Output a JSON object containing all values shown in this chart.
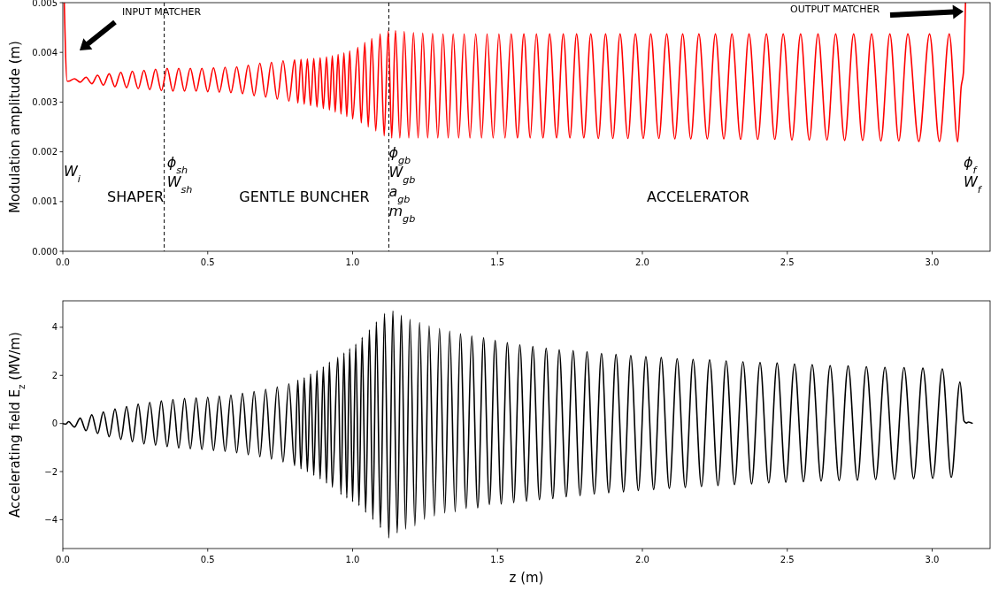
{
  "chart_data": [
    {
      "type": "line",
      "ylabel": "Modulation amplitude (m)",
      "xlim": [
        0,
        3.2
      ],
      "ylim": [
        0,
        0.005
      ],
      "xticks": [
        {
          "value": 0,
          "label": "0.0"
        },
        {
          "value": 0.5,
          "label": "0.5"
        },
        {
          "value": 1,
          "label": "1.0"
        },
        {
          "value": 1.5,
          "label": "1.5"
        },
        {
          "value": 2,
          "label": "2.0"
        },
        {
          "value": 2.5,
          "label": "2.5"
        },
        {
          "value": 3,
          "label": "3.0"
        }
      ],
      "yticks": [
        {
          "value": 0,
          "label": "0.000"
        },
        {
          "value": 0.001,
          "label": "0.001"
        },
        {
          "value": 0.002,
          "label": "0.002"
        },
        {
          "value": 0.003,
          "label": "0.003"
        },
        {
          "value": 0.004,
          "label": "0.004"
        },
        {
          "value": 0.005,
          "label": "0.005"
        }
      ],
      "x": [
        0.005,
        0.015,
        0.02,
        0.04,
        0.06,
        0.08,
        0.1,
        0.12,
        0.14,
        0.16,
        0.18,
        0.2,
        0.22,
        0.24,
        0.26,
        0.28,
        0.3,
        0.32,
        0.34,
        0.36,
        0.38,
        0.4,
        0.42,
        0.44,
        0.46,
        0.48,
        0.5,
        0.52,
        0.54,
        0.56,
        0.58,
        0.6,
        0.62,
        0.64,
        0.66,
        0.68,
        0.7,
        0.72,
        0.74,
        0.76,
        0.78,
        0.8,
        0.811,
        0.822,
        0.833,
        0.844,
        0.855,
        0.866,
        0.877,
        0.888,
        0.899,
        0.91,
        0.92,
        0.93,
        0.94,
        0.95,
        0.96,
        0.97,
        0.98,
        0.99,
        1.0,
        1.018,
        1.03,
        1.042,
        1.054,
        1.066,
        1.08,
        1.095,
        1.109,
        1.123,
        1.135,
        1.148,
        1.163,
        1.178,
        1.194,
        1.21,
        1.226,
        1.242,
        1.259,
        1.276,
        1.294,
        1.312,
        1.33,
        1.347,
        1.366,
        1.385,
        1.405,
        1.425,
        1.445,
        1.464,
        1.485,
        1.505,
        1.526,
        1.547,
        1.569,
        1.591,
        1.613,
        1.634,
        1.657,
        1.68,
        1.704,
        1.727,
        1.75,
        1.773,
        1.798,
        1.822,
        1.848,
        1.873,
        1.898,
        1.923,
        1.95,
        1.976,
        2.003,
        2.029,
        2.057,
        2.084,
        2.112,
        2.139,
        2.167,
        2.195,
        2.224,
        2.252,
        2.281,
        2.309,
        2.339,
        2.368,
        2.398,
        2.428,
        2.457,
        2.486,
        2.516,
        2.546,
        2.576,
        2.606,
        2.637,
        2.667,
        2.698,
        2.729,
        2.76,
        2.791,
        2.823,
        2.854,
        2.885,
        2.916,
        2.954,
        2.991,
        3.025,
        3.059,
        3.088,
        3.1,
        3.108,
        3.115
      ],
      "series": [
        {
          "color": "#ff0000",
          "values": [
            0.005,
            0.00342,
            0.00342,
            0.00347,
            0.0034,
            0.0035,
            0.00337,
            0.00354,
            0.00334,
            0.00357,
            0.00331,
            0.0036,
            0.00329,
            0.00362,
            0.00327,
            0.00364,
            0.00325,
            0.00366,
            0.00323,
            0.00368,
            0.00322,
            0.00368,
            0.00322,
            0.00368,
            0.00322,
            0.00368,
            0.00321,
            0.00369,
            0.0032,
            0.0037,
            0.00319,
            0.00371,
            0.00317,
            0.00374,
            0.00313,
            0.00378,
            0.0031,
            0.0038,
            0.00306,
            0.00383,
            0.00302,
            0.00385,
            0.00298,
            0.00386,
            0.00296,
            0.00387,
            0.00293,
            0.00388,
            0.0029,
            0.00389,
            0.00287,
            0.00391,
            0.00284,
            0.00393,
            0.0028,
            0.00396,
            0.00276,
            0.00399,
            0.00271,
            0.00403,
            0.00266,
            0.0041,
            0.00258,
            0.0042,
            0.0025,
            0.00428,
            0.00242,
            0.00437,
            0.00232,
            0.00443,
            0.00228,
            0.00444,
            0.00228,
            0.00442,
            0.00228,
            0.0044,
            0.00228,
            0.00439,
            0.00228,
            0.00438,
            0.00228,
            0.00437,
            0.00228,
            0.00437,
            0.00228,
            0.00437,
            0.00228,
            0.00437,
            0.00228,
            0.00437,
            0.00228,
            0.00437,
            0.00228,
            0.00437,
            0.00228,
            0.00437,
            0.00228,
            0.00437,
            0.00228,
            0.00437,
            0.00228,
            0.00437,
            0.00228,
            0.00437,
            0.00228,
            0.00437,
            0.00227,
            0.00437,
            0.00227,
            0.00437,
            0.00227,
            0.00437,
            0.00227,
            0.00437,
            0.00227,
            0.00437,
            0.00226,
            0.00437,
            0.00226,
            0.00437,
            0.00226,
            0.00437,
            0.00226,
            0.00437,
            0.00225,
            0.00437,
            0.00225,
            0.00437,
            0.00225,
            0.00437,
            0.00224,
            0.00437,
            0.00224,
            0.00437,
            0.00224,
            0.00437,
            0.00223,
            0.00437,
            0.00223,
            0.00437,
            0.00222,
            0.00437,
            0.00222,
            0.00437,
            0.00221,
            0.00437,
            0.00221,
            0.00437,
            0.0022,
            0.0033,
            0.0036,
            0.005
          ]
        }
      ],
      "ref_lines": [
        {
          "axis": "x",
          "value": 0.35,
          "color": "#000000",
          "line_style": "dashed"
        },
        {
          "axis": "x",
          "value": 1.125,
          "color": "#000000",
          "line_style": "dashed"
        }
      ],
      "annotations": [
        "INPUT MATCHER",
        "OUTPUT MATCHER",
        "SHAPER",
        "GENTLE BUNCHER",
        "ACCELERATOR",
        "W$_{i}$",
        {
          "text": "ϕ$_{sh}$\nW$_{sh}$",
          "x": 0.35,
          "y": 0.0018
        },
        {
          "text": "ϕ$_{gb}$\nW$_{gb}$\na$_{gb}$\nm$_{gb}$",
          "x": 1.125,
          "y": 0.002
        },
        "ϕ$_{f}$\nW$_{f}$"
      ]
    },
    {
      "type": "line",
      "xlabel": "z (m)",
      "ylabel": "Accelerating field E$_{z}$ (MV/m)",
      "xlim": [
        0,
        3.2
      ],
      "ylim": [
        -5.2,
        5.1
      ],
      "xticks": [
        {
          "value": 0,
          "label": "0.0"
        },
        {
          "value": 0.5,
          "label": "0.5"
        },
        {
          "value": 1,
          "label": "1.0"
        },
        {
          "value": 1.5,
          "label": "1.5"
        },
        {
          "value": 2,
          "label": "2.0"
        },
        {
          "value": 2.5,
          "label": "2.5"
        },
        {
          "value": 3,
          "label": "3.0"
        }
      ],
      "yticks": [
        {
          "value": -4,
          "label": "−4"
        },
        {
          "value": -2,
          "label": "−2"
        },
        0,
        2,
        4
      ],
      "x": [
        0,
        0.01,
        0.02,
        0.04,
        0.06,
        0.08,
        0.1,
        0.12,
        0.14,
        0.16,
        0.18,
        0.2,
        0.22,
        0.24,
        0.26,
        0.28,
        0.3,
        0.32,
        0.34,
        0.36,
        0.38,
        0.4,
        0.42,
        0.44,
        0.46,
        0.48,
        0.5,
        0.52,
        0.54,
        0.56,
        0.58,
        0.6,
        0.62,
        0.64,
        0.66,
        0.68,
        0.7,
        0.72,
        0.74,
        0.76,
        0.78,
        0.8,
        0.811,
        0.822,
        0.833,
        0.844,
        0.855,
        0.866,
        0.877,
        0.888,
        0.899,
        0.91,
        0.92,
        0.93,
        0.949,
        0.96,
        0.97,
        0.98,
        0.99,
        1.0,
        1.011,
        1.022,
        1.033,
        1.045,
        1.058,
        1.07,
        1.082,
        1.096,
        1.11,
        1.125,
        1.139,
        1.154,
        1.168,
        1.183,
        1.198,
        1.215,
        1.231,
        1.248,
        1.264,
        1.282,
        1.3,
        1.318,
        1.335,
        1.354,
        1.372,
        1.392,
        1.411,
        1.432,
        1.452,
        1.472,
        1.492,
        1.513,
        1.534,
        1.556,
        1.577,
        1.6,
        1.622,
        1.645,
        1.668,
        1.691,
        1.713,
        1.737,
        1.761,
        1.785,
        1.809,
        1.834,
        1.859,
        1.884,
        1.909,
        1.935,
        1.96,
        1.986,
        2.012,
        2.039,
        2.065,
        2.093,
        2.12,
        2.148,
        2.175,
        2.204,
        2.232,
        2.261,
        2.289,
        2.318,
        2.347,
        2.377,
        2.406,
        2.436,
        2.465,
        2.495,
        2.525,
        2.556,
        2.586,
        2.617,
        2.648,
        2.679,
        2.71,
        2.742,
        2.773,
        2.805,
        2.837,
        2.87,
        2.903,
        2.936,
        2.968,
        3.002,
        3.035,
        3.066,
        3.096,
        3.11,
        3.118,
        3.125,
        3.14
      ],
      "series": [
        {
          "color": "#000000",
          "values": [
            0,
            -0.03,
            0.08,
            -0.15,
            0.22,
            -0.3,
            0.36,
            -0.42,
            0.48,
            -0.55,
            0.6,
            -0.66,
            0.7,
            -0.76,
            0.8,
            -0.85,
            0.88,
            -0.9,
            0.94,
            -0.96,
            1.0,
            -1.02,
            1.04,
            -1.05,
            1.06,
            -1.08,
            1.09,
            -1.12,
            1.13,
            -1.16,
            1.18,
            -1.22,
            1.25,
            -1.3,
            1.33,
            -1.38,
            1.42,
            -1.48,
            1.52,
            -1.6,
            1.65,
            -1.75,
            1.8,
            -1.88,
            1.9,
            -2.0,
            2.05,
            -2.15,
            2.2,
            -2.3,
            2.35,
            -2.48,
            2.55,
            -2.65,
            2.74,
            -2.95,
            2.93,
            -3.1,
            3.11,
            -3.25,
            3.3,
            -3.41,
            3.58,
            -3.69,
            3.89,
            -3.99,
            4.22,
            -4.33,
            4.57,
            -4.76,
            4.68,
            -4.55,
            4.5,
            -4.39,
            4.33,
            -4.25,
            4.2,
            -3.98,
            4.06,
            -3.84,
            3.95,
            -3.72,
            3.84,
            -3.67,
            3.73,
            -3.53,
            3.64,
            -3.51,
            3.56,
            -3.37,
            3.45,
            -3.35,
            3.36,
            -3.29,
            3.27,
            -3.23,
            3.2,
            -3.17,
            3.13,
            -3.12,
            3.07,
            -3.05,
            3.03,
            -3.0,
            2.98,
            -2.93,
            2.91,
            -2.88,
            2.87,
            -2.84,
            2.83,
            -2.79,
            2.78,
            -2.75,
            2.74,
            -2.7,
            2.69,
            -2.66,
            2.66,
            -2.62,
            2.64,
            -2.58,
            2.6,
            -2.54,
            2.56,
            -2.51,
            2.53,
            -2.47,
            2.51,
            -2.44,
            2.47,
            -2.42,
            2.44,
            -2.39,
            2.4,
            -2.37,
            2.39,
            -2.36,
            2.36,
            -2.33,
            2.33,
            -2.32,
            2.32,
            -2.29,
            2.3,
            -2.28,
            2.27,
            -2.24,
            1.72,
            0.1,
            0.02,
            0.06,
            0
          ]
        }
      ]
    }
  ]
}
